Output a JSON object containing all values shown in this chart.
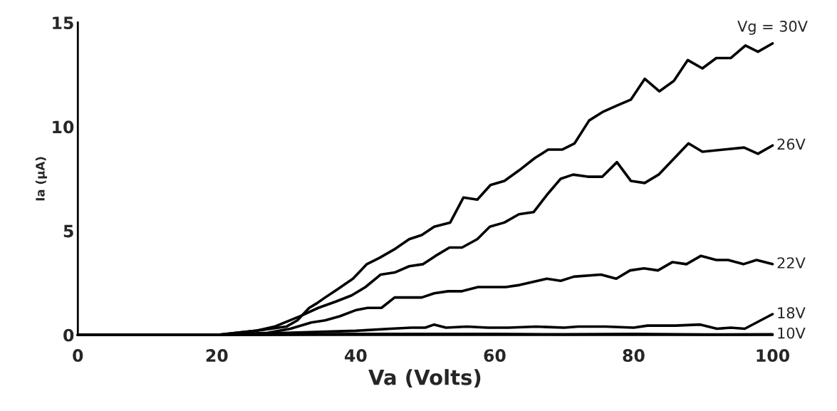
{
  "chart_data": {
    "type": "line",
    "xlabel": "Va (Volts)",
    "ylabel": "Ia (μA)",
    "xlim": [
      0,
      100
    ],
    "ylim": [
      0,
      15
    ],
    "xticks": [
      0,
      20,
      40,
      60,
      80,
      100
    ],
    "yticks": [
      0,
      5,
      10,
      15
    ],
    "grid": false,
    "legend": false,
    "marker": "none",
    "line_style": "solid",
    "series": [
      {
        "name": "Vg = 30V",
        "color": "#000000",
        "x": [
          0,
          20,
          25.6,
          30,
          31.6,
          33.3,
          34.3,
          35.6,
          37.4,
          39.6,
          41.6,
          43.4,
          45.5,
          47.7,
          49.5,
          51.3,
          53.6,
          55.5,
          57.5,
          59.4,
          61.4,
          63.5,
          65.8,
          67.7,
          69.7,
          71.5,
          73.6,
          75.5,
          77.5,
          79.6,
          81.6,
          83.7,
          85.8,
          87.8,
          89.9,
          91.9,
          94,
          96.1,
          97.9,
          100
        ],
        "values": [
          0,
          0,
          0.2,
          0.4,
          0.7,
          1.3,
          1.5,
          1.8,
          2.2,
          2.7,
          3.4,
          3.7,
          4.1,
          4.6,
          4.8,
          5.2,
          5.4,
          6.6,
          6.5,
          7.2,
          7.4,
          7.9,
          8.5,
          8.9,
          8.9,
          9.2,
          10.3,
          10.7,
          11,
          11.3,
          12.3,
          11.7,
          12.2,
          13.2,
          12.8,
          13.3,
          13.3,
          13.9,
          13.6,
          14
        ]
      },
      {
        "name": "26V",
        "color": "#000000",
        "x": [
          0,
          20,
          25.6,
          28.3,
          32,
          34.6,
          37.1,
          39.4,
          41.4,
          43.6,
          45.6,
          47.7,
          49.7,
          51.5,
          53.5,
          55.3,
          57.5,
          59.3,
          61.4,
          63.5,
          65.6,
          67.7,
          69.5,
          71.3,
          73.4,
          75.5,
          77.6,
          79.6,
          81.6,
          83.6,
          87.9,
          89.9,
          95.9,
          97.9,
          100
        ],
        "values": [
          0,
          0,
          0.2,
          0.4,
          0.9,
          1.3,
          1.6,
          1.9,
          2.3,
          2.9,
          3,
          3.3,
          3.4,
          3.8,
          4.2,
          4.2,
          4.6,
          5.2,
          5.4,
          5.8,
          5.9,
          6.8,
          7.5,
          7.7,
          7.6,
          7.6,
          8.3,
          7.4,
          7.3,
          7.7,
          9.2,
          8.8,
          9,
          8.7,
          9.1
        ]
      },
      {
        "name": "22V",
        "color": "#000000",
        "x": [
          0,
          20,
          27.3,
          30.6,
          33.6,
          35.6,
          37.7,
          40.1,
          41.7,
          43.7,
          45.6,
          47.5,
          49.5,
          51.3,
          53.3,
          55.3,
          57.6,
          61.6,
          63.6,
          67.5,
          69.5,
          71.4,
          75.3,
          77.5,
          79.5,
          81.5,
          83.5,
          85.6,
          87.6,
          89.7,
          91.9,
          93.6,
          95.8,
          97.7,
          100
        ],
        "values": [
          0,
          0,
          0.1,
          0.3,
          0.6,
          0.7,
          0.9,
          1.2,
          1.3,
          1.3,
          1.8,
          1.8,
          1.8,
          2,
          2.1,
          2.1,
          2.3,
          2.3,
          2.4,
          2.7,
          2.6,
          2.8,
          2.9,
          2.7,
          3.1,
          3.2,
          3.1,
          3.5,
          3.4,
          3.8,
          3.6,
          3.6,
          3.4,
          3.6,
          3.4
        ]
      },
      {
        "name": "18V",
        "color": "#000000",
        "x": [
          0,
          20,
          25,
          30,
          35,
          40,
          45,
          48,
          50,
          51.3,
          53,
          56,
          59,
          62,
          66,
          70,
          72,
          76,
          80,
          82,
          86,
          89.6,
          92,
          94,
          96,
          98,
          100
        ],
        "values": [
          0,
          0,
          0.05,
          0.1,
          0.15,
          0.2,
          0.3,
          0.35,
          0.35,
          0.5,
          0.35,
          0.4,
          0.35,
          0.35,
          0.4,
          0.35,
          0.4,
          0.4,
          0.35,
          0.45,
          0.45,
          0.5,
          0.3,
          0.35,
          0.3,
          0.65,
          1
        ]
      },
      {
        "name": "10V",
        "color": "#000000",
        "x": [
          0,
          20,
          30,
          40,
          50,
          60,
          70,
          80,
          90,
          100
        ],
        "values": [
          0,
          0,
          0.02,
          0.05,
          0.05,
          0.05,
          0.03,
          0.05,
          0.02,
          0.03
        ]
      }
    ]
  }
}
